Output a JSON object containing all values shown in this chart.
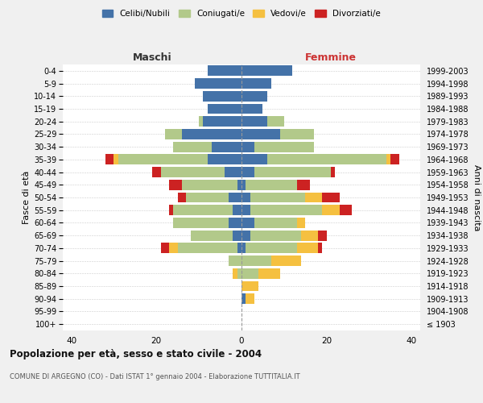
{
  "age_groups": [
    "100+",
    "95-99",
    "90-94",
    "85-89",
    "80-84",
    "75-79",
    "70-74",
    "65-69",
    "60-64",
    "55-59",
    "50-54",
    "45-49",
    "40-44",
    "35-39",
    "30-34",
    "25-29",
    "20-24",
    "15-19",
    "10-14",
    "5-9",
    "0-4"
  ],
  "birth_years": [
    "≤ 1903",
    "1904-1908",
    "1909-1913",
    "1914-1918",
    "1919-1923",
    "1924-1928",
    "1929-1933",
    "1934-1938",
    "1939-1943",
    "1944-1948",
    "1949-1953",
    "1954-1958",
    "1959-1963",
    "1964-1968",
    "1969-1973",
    "1974-1978",
    "1979-1983",
    "1984-1988",
    "1989-1993",
    "1994-1998",
    "1999-2003"
  ],
  "colors": {
    "celibi": "#4472a8",
    "coniugati": "#b2c98a",
    "vedovi": "#f5c040",
    "divorziati": "#cc2222"
  },
  "maschi": {
    "celibi": [
      0,
      0,
      0,
      0,
      0,
      0,
      1,
      2,
      3,
      2,
      3,
      1,
      4,
      8,
      7,
      14,
      9,
      8,
      9,
      11,
      8
    ],
    "coniugati": [
      0,
      0,
      0,
      0,
      1,
      3,
      14,
      10,
      13,
      14,
      10,
      13,
      15,
      21,
      9,
      4,
      1,
      0,
      0,
      0,
      0
    ],
    "vedovi": [
      0,
      0,
      0,
      0,
      1,
      0,
      2,
      0,
      0,
      0,
      0,
      0,
      0,
      1,
      0,
      0,
      0,
      0,
      0,
      0,
      0
    ],
    "divorziati": [
      0,
      0,
      0,
      0,
      0,
      0,
      2,
      0,
      0,
      1,
      2,
      3,
      2,
      2,
      0,
      0,
      0,
      0,
      0,
      0,
      0
    ]
  },
  "femmine": {
    "celibi": [
      0,
      0,
      1,
      0,
      0,
      0,
      1,
      2,
      3,
      2,
      2,
      1,
      3,
      6,
      3,
      9,
      6,
      5,
      6,
      7,
      12
    ],
    "coniugati": [
      0,
      0,
      0,
      0,
      4,
      7,
      12,
      12,
      10,
      17,
      13,
      12,
      18,
      28,
      14,
      8,
      4,
      0,
      0,
      0,
      0
    ],
    "vedovi": [
      0,
      0,
      2,
      4,
      5,
      7,
      5,
      4,
      2,
      4,
      4,
      0,
      0,
      1,
      0,
      0,
      0,
      0,
      0,
      0,
      0
    ],
    "divorziati": [
      0,
      0,
      0,
      0,
      0,
      0,
      1,
      2,
      0,
      3,
      4,
      3,
      1,
      2,
      0,
      0,
      0,
      0,
      0,
      0,
      0
    ]
  },
  "xlim": 42,
  "title": "Popolazione per età, sesso e stato civile - 2004",
  "subtitle": "COMUNE DI ARGEGNO (CO) - Dati ISTAT 1° gennaio 2004 - Elaborazione TUTTITALIA.IT",
  "ylabel_left": "Fasce di età",
  "ylabel_right": "Anni di nascita",
  "xlabel_left": "Maschi",
  "xlabel_right": "Femmine",
  "legend_labels": [
    "Celibi/Nubili",
    "Coniugati/e",
    "Vedovi/e",
    "Divorziati/e"
  ],
  "bg_color": "#f0f0f0",
  "plot_bg": "#ffffff"
}
